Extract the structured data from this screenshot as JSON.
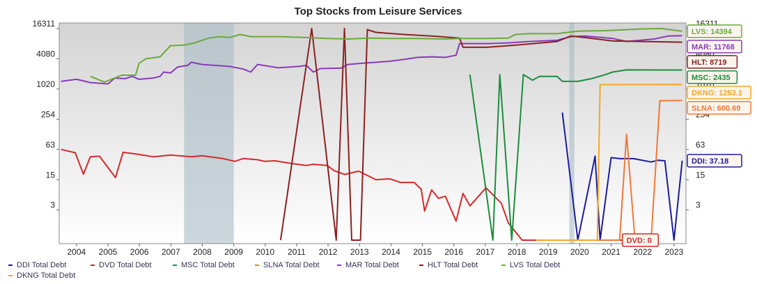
{
  "chart_data": {
    "type": "line",
    "title": "Top Stocks from Leisure Services",
    "yscale": "log1p",
    "ylim": [
      0,
      16311
    ],
    "yticks": [
      3,
      15,
      63,
      254,
      1020,
      4080,
      16311
    ],
    "xlim": [
      2003.95,
      2023.88
    ],
    "xticks": [
      {
        "value": 2004.5,
        "label": "2004"
      },
      {
        "value": 2005.5,
        "label": "2005"
      },
      {
        "value": 2006.5,
        "label": "2006"
      },
      {
        "value": 2007.5,
        "label": "2007"
      },
      {
        "value": 2008.5,
        "label": "2008"
      },
      {
        "value": 2009.5,
        "label": "2009"
      },
      {
        "value": 2010.5,
        "label": "2010"
      },
      {
        "value": 2011.5,
        "label": "2011"
      },
      {
        "value": 2012.5,
        "label": "2012"
      },
      {
        "value": 2013.5,
        "label": "2013"
      },
      {
        "value": 2014.5,
        "label": "2014"
      },
      {
        "value": 2015.5,
        "label": "2015"
      },
      {
        "value": 2016.5,
        "label": "2016"
      },
      {
        "value": 2017.5,
        "label": "2017"
      },
      {
        "value": 2018.5,
        "label": "2018"
      },
      {
        "value": 2019.5,
        "label": "2019"
      },
      {
        "value": 2020.5,
        "label": "2020"
      },
      {
        "value": 2021.5,
        "label": "2021"
      },
      {
        "value": 2022.5,
        "label": "2022"
      },
      {
        "value": 2023.5,
        "label": "2023"
      }
    ],
    "shaded_periods": [
      [
        2007.92,
        2009.5
      ],
      [
        2020.17,
        2020.33
      ]
    ],
    "legend": "bottom-left",
    "series": [
      {
        "name": "DDI Total Debt",
        "color": "#1c1c9c",
        "end_label": "DDI: 37.18",
        "x": [
          2019.95,
          2020.44,
          2020.99,
          2021.15,
          2021.5,
          2021.77,
          2022.21,
          2022.77,
          2022.99,
          2023.21,
          2023.5,
          2023.76
        ],
        "values": [
          347,
          0,
          46,
          0,
          43,
          41,
          41,
          35,
          38,
          37,
          0,
          37.18
        ]
      },
      {
        "name": "DVD Total Debt",
        "color": "#d42a2a",
        "end_label": "DVD: 0",
        "x": [
          2004.01,
          2004.46,
          2004.72,
          2004.94,
          2005.23,
          2005.74,
          2005.98,
          2006.49,
          2006.94,
          2007.49,
          2008.15,
          2008.49,
          2009.15,
          2009.53,
          2009.81,
          2010.26,
          2010.48,
          2010.81,
          2011.36,
          2011.81,
          2012.03,
          2012.47,
          2012.69,
          2013.02,
          2013.47,
          2014.02,
          2014.46,
          2014.8,
          2015.24,
          2015.46,
          2015.57,
          2015.79,
          2016.01,
          2016.23,
          2016.57,
          2016.79,
          2017.01,
          2017.52,
          2018.01,
          2018.23,
          2018.67,
          2019.11,
          2021.99
        ],
        "values": [
          63,
          54,
          19.5,
          44.7,
          45.9,
          16.6,
          55,
          49.8,
          44.7,
          48.4,
          44.7,
          47,
          41.2,
          36,
          41.2,
          38.8,
          36,
          37,
          32.4,
          29.7,
          31.4,
          29.7,
          23.2,
          19.3,
          22.6,
          15,
          15.6,
          13.1,
          13.1,
          9.3,
          2.8,
          9,
          5.8,
          6.5,
          1.4,
          7.5,
          3.8,
          10,
          4.4,
          1.2,
          0,
          0,
          0
        ]
      },
      {
        "name": "MSC Total Debt",
        "color": "#1e8c3e",
        "end_label": "MSC: 2435",
        "x": [
          2017.01,
          2017.74,
          2017.96,
          2018.34,
          2018.71,
          2019.0,
          2019.22,
          2019.78,
          2019.95,
          2020.44,
          2020.88,
          2021.33,
          2021.55,
          2021.99,
          2023.76
        ],
        "values": [
          1980,
          0,
          1980,
          0,
          1980,
          1530,
          1820,
          1820,
          1448,
          1448,
          1640,
          1980,
          2222,
          2450,
          2435
        ]
      },
      {
        "name": "SLNA Total Debt",
        "color": "#f07838",
        "end_label": "SLNA: 600.69",
        "x": [
          2019.11,
          2021.77,
          2021.99,
          2022.26,
          2022.77,
          2023.05,
          2023.76
        ],
        "values": [
          0,
          0,
          127,
          0,
          0,
          595,
          600.69
        ]
      },
      {
        "name": "MAR Total Debt",
        "color": "#8a3ab9",
        "end_label": "MAR: 11768",
        "x": [
          2004.01,
          2004.5,
          2004.94,
          2005.5,
          2005.72,
          2006.05,
          2006.27,
          2006.49,
          2006.94,
          2007.16,
          2007.27,
          2007.49,
          2007.71,
          2008.04,
          2008.15,
          2008.49,
          2009.37,
          2009.81,
          2010.04,
          2010.26,
          2010.92,
          2011.58,
          2011.81,
          2012.03,
          2012.25,
          2012.91,
          2013.13,
          2013.58,
          2014.46,
          2014.91,
          2015.35,
          2015.79,
          2016.23,
          2016.57,
          2016.68,
          2017.56,
          2018.23,
          2018.89,
          2019.78,
          2020.22,
          2020.66,
          2021.55,
          2021.99,
          2022.88,
          2023.32,
          2023.76
        ],
        "values": [
          1448,
          1594,
          1369,
          1288,
          1689,
          1640,
          1820,
          1594,
          1689,
          1820,
          2222,
          2130,
          2780,
          3020,
          3480,
          3140,
          2870,
          2540,
          2222,
          3140,
          2700,
          2870,
          3020,
          2222,
          2600,
          2650,
          3140,
          3318,
          3640,
          3960,
          4350,
          4465,
          4350,
          4800,
          8192,
          8192,
          8440,
          9000,
          9520,
          11260,
          11600,
          10320,
          9000,
          10100,
          11600,
          11768
        ]
      },
      {
        "name": "HLT Total Debt",
        "color": "#8b2020",
        "end_label": "HLT: 8719",
        "x": [
          2010.99,
          2011.98,
          2012.76,
          2013.02,
          2013.25,
          2013.53,
          2013.75,
          2014.02,
          2014.91,
          2015.79,
          2016.68,
          2016.79,
          2017.56,
          2018.45,
          2019.78,
          2020.22,
          2020.66,
          2021.55,
          2023.76
        ],
        "values": [
          0,
          16311,
          0,
          16311,
          0,
          0,
          15480,
          13680,
          12420,
          11600,
          10530,
          6920,
          6920,
          7600,
          9000,
          11600,
          10800,
          9200,
          8719
        ]
      },
      {
        "name": "LVS Total Debt",
        "color": "#6aaa3a",
        "end_label": "LVS: 14394",
        "x": [
          2004.94,
          2005.39,
          2005.94,
          2006.38,
          2006.49,
          2006.71,
          2007.16,
          2007.49,
          2007.93,
          2008.26,
          2008.71,
          2009.04,
          2009.37,
          2009.7,
          2010.04,
          2010.92,
          2011.81,
          2012.47,
          2013.13,
          2013.8,
          2014.46,
          2015.35,
          2016.23,
          2016.68,
          2017.56,
          2018.23,
          2018.45,
          2018.89,
          2019.78,
          2020.44,
          2021.33,
          2022.43,
          2023.1,
          2023.76
        ],
        "values": [
          1820,
          1408,
          1925,
          1925,
          3318,
          4080,
          4465,
          7434,
          7643,
          8440,
          10530,
          11260,
          10820,
          12420,
          11260,
          11260,
          10820,
          10320,
          10100,
          10530,
          10320,
          10320,
          10100,
          10320,
          10320,
          10530,
          12420,
          12870,
          12870,
          14460,
          14830,
          15990,
          16300,
          14394
        ]
      },
      {
        "name": "DKNG Total Debt",
        "color": "#f5a623",
        "end_label": "DKNG: 1253.1",
        "x": [
          2019.11,
          2021.06,
          2021.15,
          2023.76
        ],
        "values": [
          0,
          0,
          1244,
          1253.1
        ]
      }
    ]
  }
}
